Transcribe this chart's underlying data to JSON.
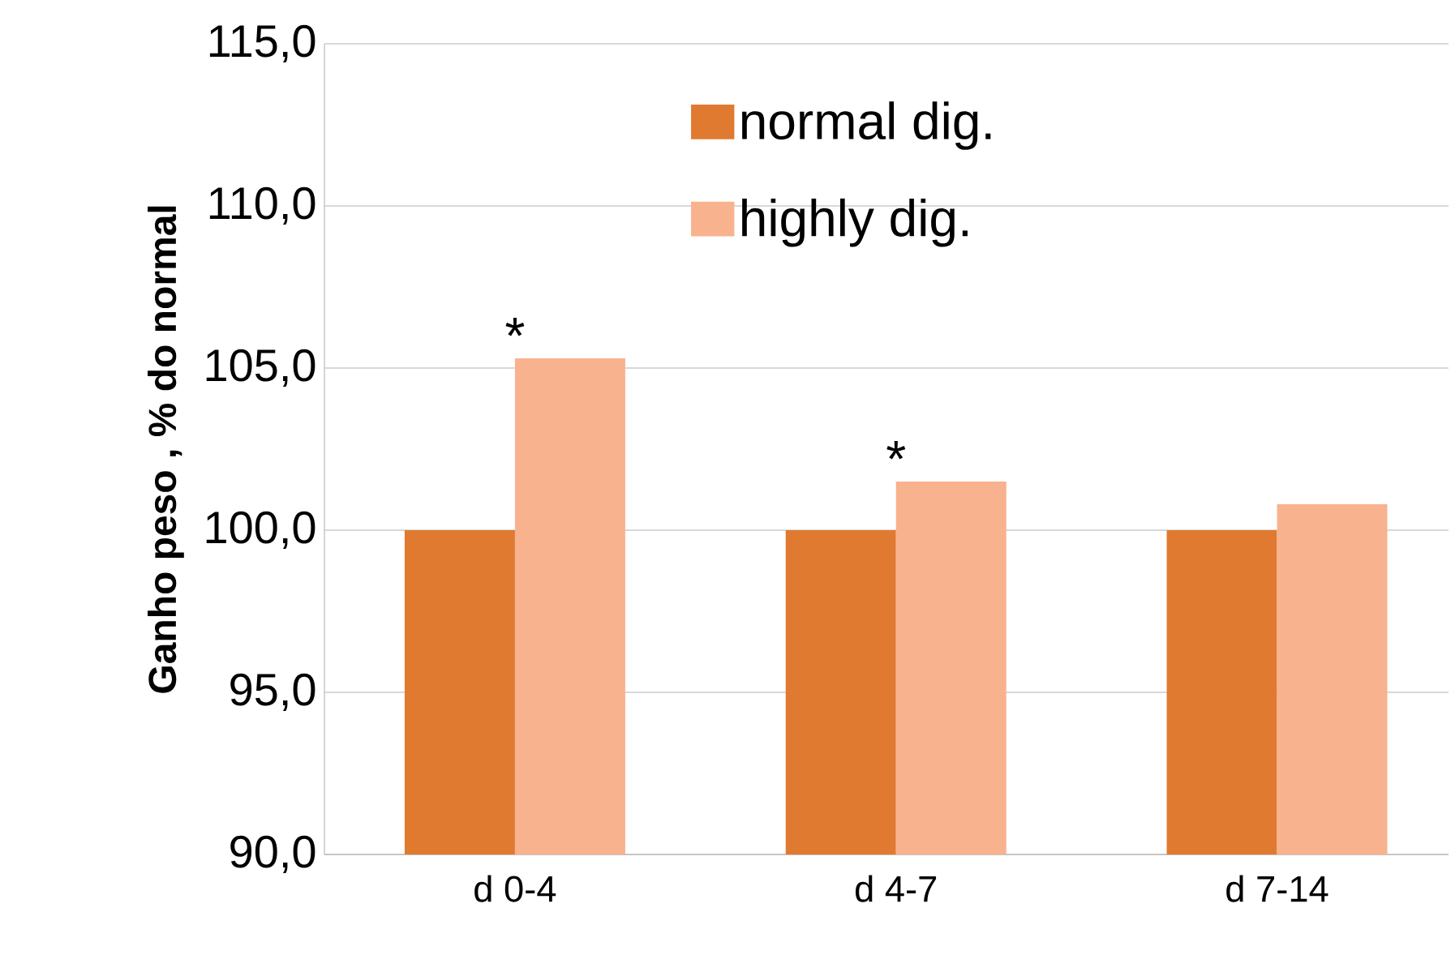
{
  "chart_data": {
    "type": "bar",
    "ylabel": "Ganho peso , % do normal",
    "categories": [
      "d 0-4",
      "d 4-7",
      "d 7-14"
    ],
    "series": [
      {
        "name": "normal dig.",
        "color": "#e07a30",
        "values": [
          100.0,
          100.0,
          100.0
        ]
      },
      {
        "name": "highly dig.",
        "color": "#f9b28e",
        "values": [
          105.3,
          101.5,
          100.8
        ]
      }
    ],
    "ylim": [
      90,
      115
    ],
    "yticks": [
      {
        "value": 90,
        "label": "90,0"
      },
      {
        "value": 95,
        "label": "95,0"
      },
      {
        "value": 100,
        "label": "100,0"
      },
      {
        "value": 105,
        "label": "105,0"
      },
      {
        "value": 110,
        "label": "110,0"
      },
      {
        "value": 115,
        "label": "115,0"
      }
    ],
    "grid": "y",
    "legend": "top",
    "annotations": [
      {
        "text": "*",
        "x": "d 0-4",
        "y": 105.3
      },
      {
        "text": "*",
        "x": "d 4-7",
        "y": 101.5
      }
    ]
  }
}
